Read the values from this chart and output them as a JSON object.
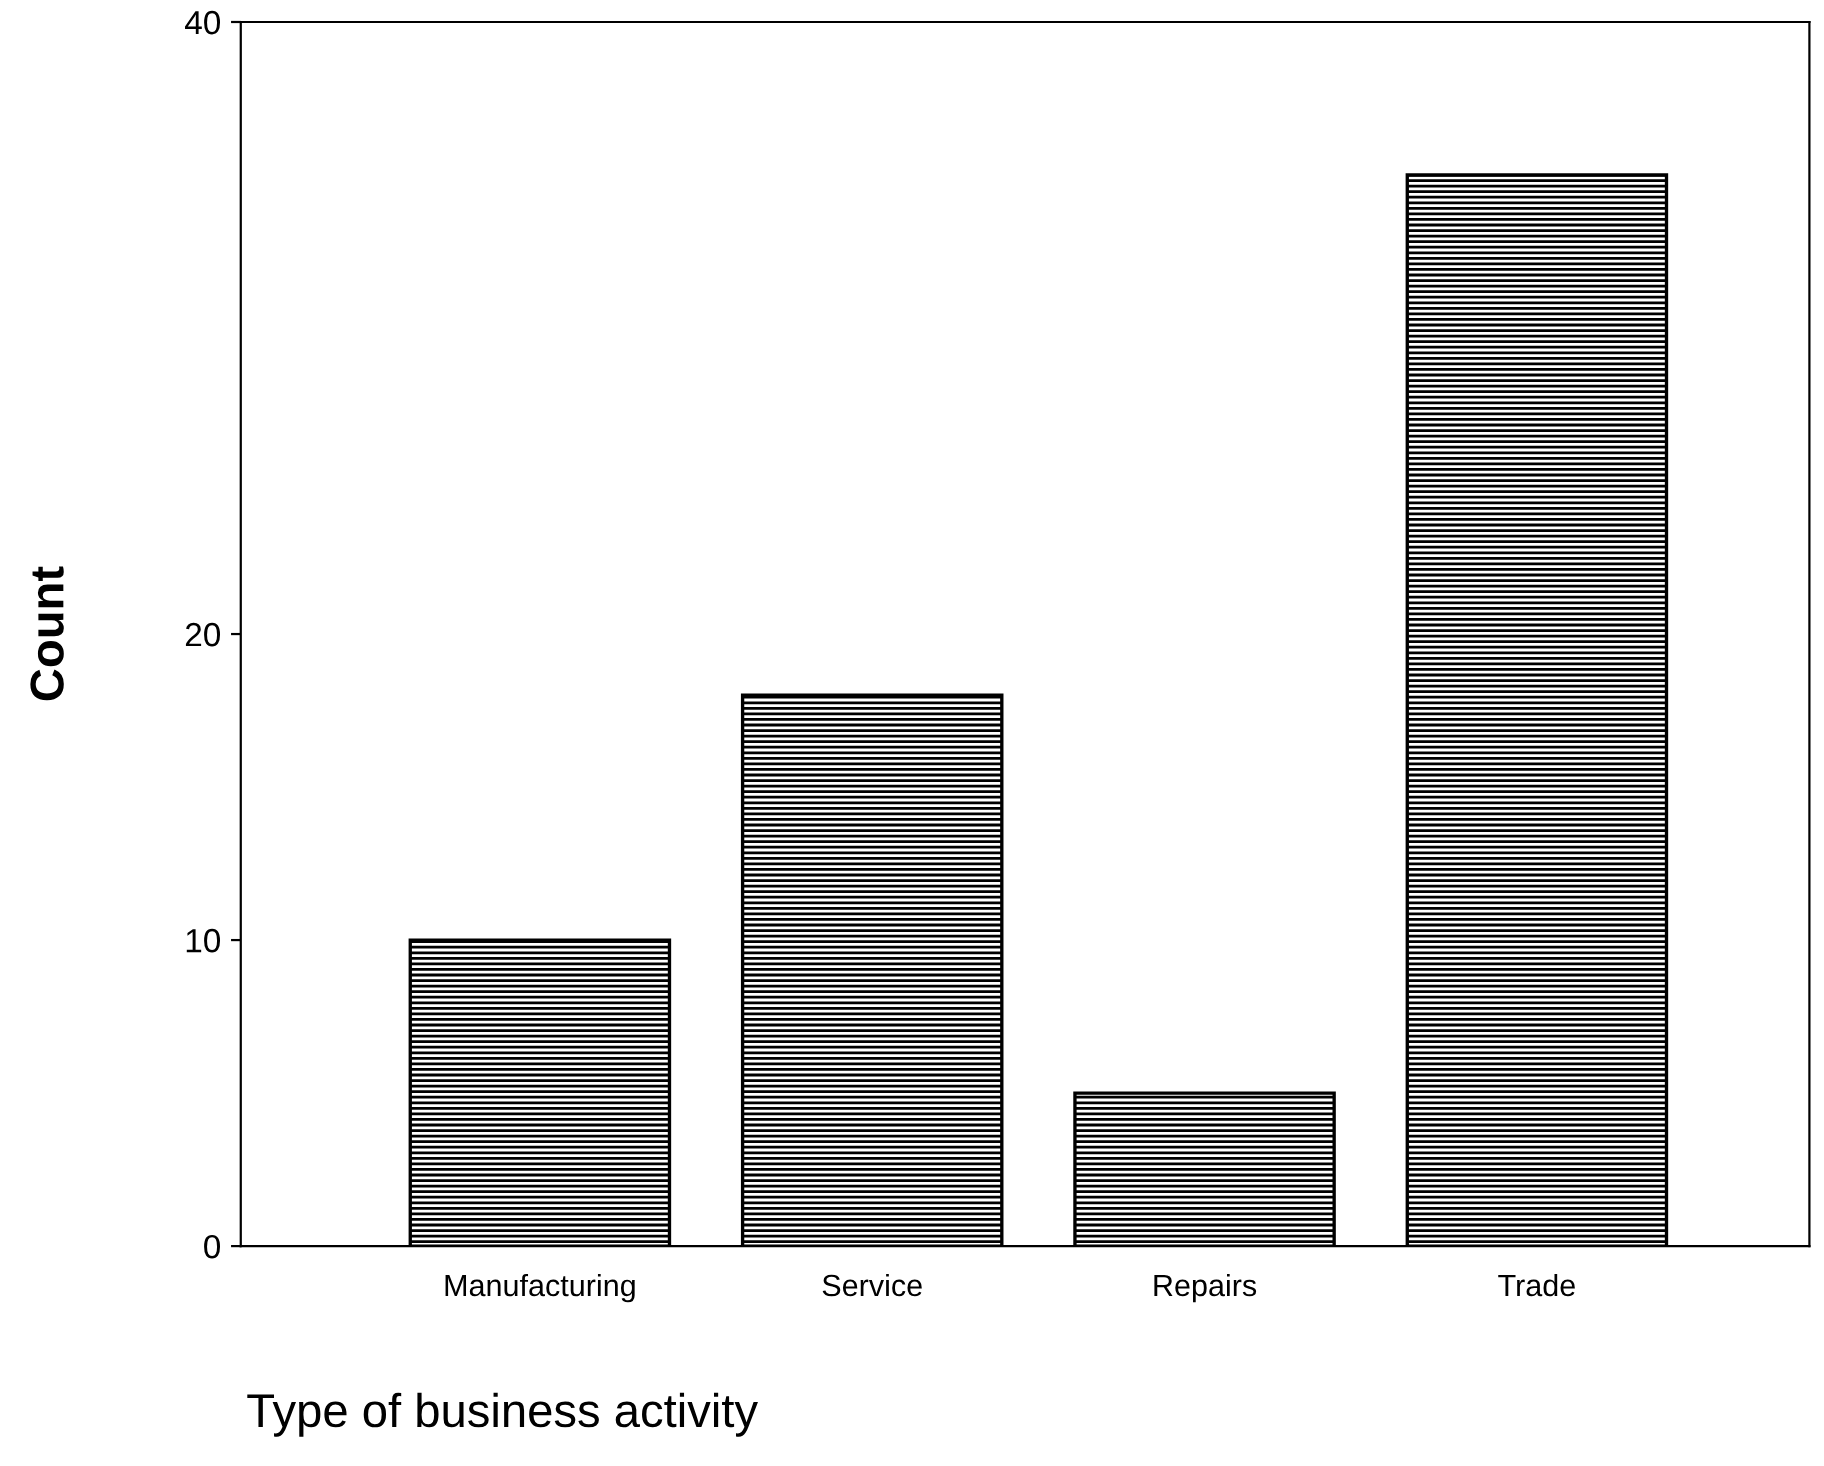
{
  "chart_data": {
    "type": "bar",
    "categories": [
      "Manufacturing",
      "Service",
      "Repairs",
      "Trade"
    ],
    "values": [
      10,
      18,
      5,
      35
    ],
    "color": "#000000",
    "xlabel": "Type of business activity",
    "ylabel": "Count",
    "ylim": [
      0,
      40
    ],
    "yticks": [
      0,
      10,
      20,
      40
    ],
    "grid": false,
    "legend": false
  }
}
